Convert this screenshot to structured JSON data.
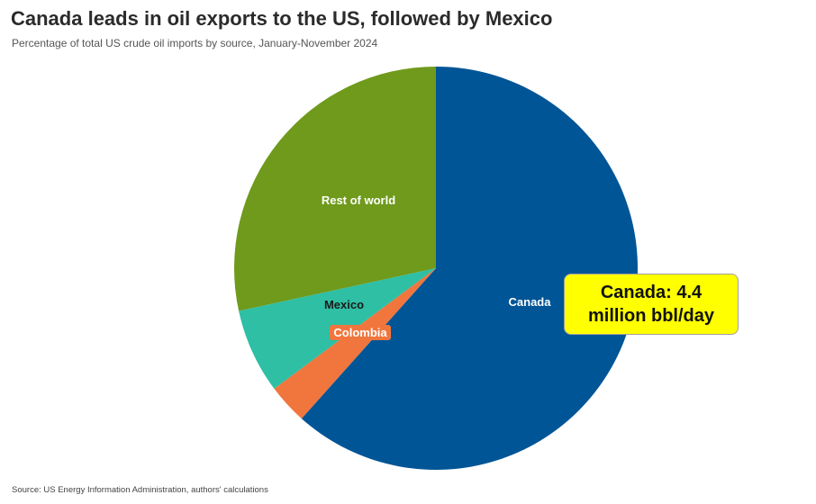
{
  "header": {
    "title": "Canada leads in oil exports to the US, followed by Mexico",
    "subtitle": "Percentage of total US crude oil imports by source, January-November 2024"
  },
  "footer": {
    "source": "Source: US Energy Information Administration, authors' calculations"
  },
  "callout": {
    "line1": "Canada: 4.4",
    "line2": "million bbl/day"
  },
  "chart_data": {
    "type": "pie",
    "title": "Canada leads in oil exports to the US, followed by Mexico",
    "subtitle": "Percentage of total US crude oil imports by source, January-November 2024",
    "start_angle_deg": 0,
    "direction": "clockwise",
    "slices": [
      {
        "label": "Canada",
        "value": 61.6,
        "color": "#005596",
        "label_color": "#ffffff"
      },
      {
        "label": "Colombia",
        "value": 3.2,
        "color": "#f0763e",
        "label_color": "#ffffff"
      },
      {
        "label": "Mexico",
        "value": 6.8,
        "color": "#2ebfa5",
        "label_color": "#1a1a1a"
      },
      {
        "label": "Rest of world",
        "value": 28.4,
        "color": "#6f9a1c",
        "label_color": "#ffffff"
      }
    ]
  }
}
